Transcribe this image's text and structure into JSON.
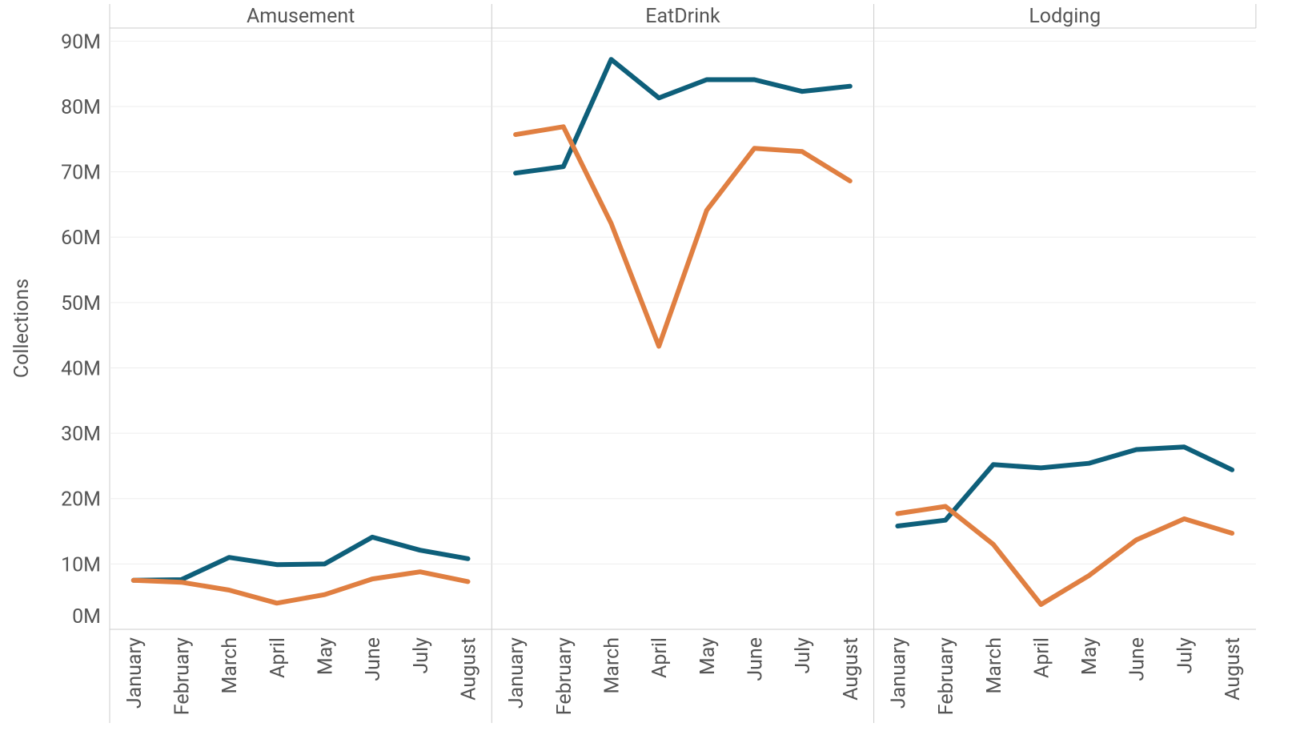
{
  "chart_data": [
    {
      "type": "line",
      "title": "Amusement",
      "y_label": "Collections",
      "categories": [
        "January",
        "February",
        "March",
        "April",
        "May",
        "June",
        "July",
        "August"
      ],
      "series": [
        {
          "color": "#0e5f7a",
          "values": [
            7500000,
            7600000,
            11000000,
            9900000,
            10000000,
            14100000,
            12100000,
            10800000
          ]
        },
        {
          "color": "#e07f41",
          "values": [
            7500000,
            7200000,
            6000000,
            4000000,
            5300000,
            7700000,
            8800000,
            7300000
          ]
        }
      ],
      "ylim": [
        0,
        92000000
      ],
      "yticks": [
        {
          "value": 0,
          "label": "0M"
        },
        {
          "value": 10000000,
          "label": "10M"
        },
        {
          "value": 20000000,
          "label": "20M"
        },
        {
          "value": 30000000,
          "label": "30M"
        },
        {
          "value": 40000000,
          "label": "40M"
        },
        {
          "value": 50000000,
          "label": "50M"
        },
        {
          "value": 60000000,
          "label": "60M"
        },
        {
          "value": 70000000,
          "label": "70M"
        },
        {
          "value": 80000000,
          "label": "80M"
        },
        {
          "value": 90000000,
          "label": "90M"
        }
      ],
      "grid": true
    },
    {
      "type": "line",
      "title": "EatDrink",
      "categories": [
        "January",
        "February",
        "March",
        "April",
        "May",
        "June",
        "July",
        "August"
      ],
      "series": [
        {
          "color": "#0e5f7a",
          "values": [
            69800000,
            70800000,
            87200000,
            81300000,
            84100000,
            84100000,
            82300000,
            83100000
          ]
        },
        {
          "color": "#e07f41",
          "values": [
            75700000,
            76900000,
            62100000,
            43300000,
            64100000,
            73600000,
            73100000,
            68600000
          ]
        }
      ],
      "ylim": [
        0,
        92000000
      ],
      "yticks": [
        0,
        10000000,
        20000000,
        30000000,
        40000000,
        50000000,
        60000000,
        70000000,
        80000000,
        90000000
      ],
      "grid": true
    },
    {
      "type": "line",
      "title": "Lodging",
      "categories": [
        "January",
        "February",
        "March",
        "April",
        "May",
        "June",
        "July",
        "August"
      ],
      "series": [
        {
          "color": "#0e5f7a",
          "values": [
            15800000,
            16700000,
            25200000,
            24700000,
            25400000,
            27500000,
            27900000,
            24400000
          ]
        },
        {
          "color": "#e07f41",
          "values": [
            17700000,
            18800000,
            13000000,
            3800000,
            8200000,
            13700000,
            16900000,
            14700000
          ]
        }
      ],
      "ylim": [
        0,
        92000000
      ],
      "yticks": [
        0,
        10000000,
        20000000,
        30000000,
        40000000,
        50000000,
        60000000,
        70000000,
        80000000,
        90000000
      ],
      "grid": true
    }
  ]
}
